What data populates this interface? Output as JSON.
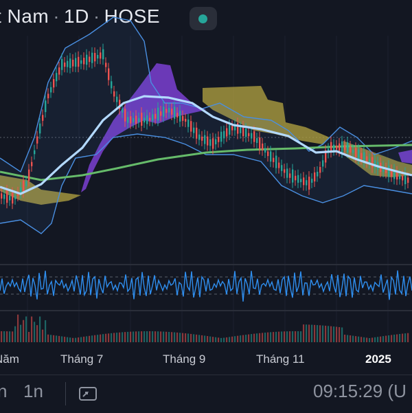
{
  "header": {
    "symbol_name": "t Nam",
    "interval": "1D",
    "exchange": "HOSE",
    "market_status_color": "#26a69a"
  },
  "chart": {
    "colors": {
      "background": "#131722",
      "up_candle": "#26a69a",
      "down_candle": "#ef5350",
      "bollinger_band": "#4a90e2",
      "ma_fast": "#b3d9ff",
      "ma_slow": "#66bb6a",
      "cloud_bear": "#7b3fd1",
      "cloud_bull": "#b5a642",
      "oscillator": "#2f8ff0"
    },
    "time_axis": [
      "Năm",
      "Tháng 7",
      "Tháng 9",
      "Tháng 11",
      "2025"
    ]
  },
  "footer": {
    "interval_a": "n",
    "interval_b": "1n",
    "replay_icon": "replay-icon",
    "clock": "09:15:29 (U"
  }
}
